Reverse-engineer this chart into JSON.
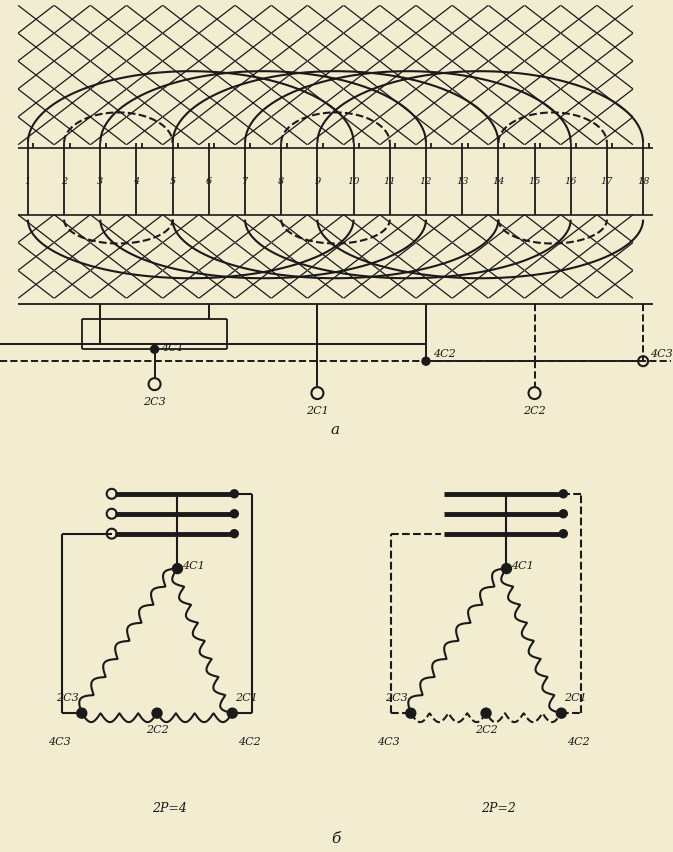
{
  "bg_color": "#f2ecd0",
  "line_color": "#1a1a1a",
  "n_slots": 18,
  "slot_numbers": [
    "1",
    "2",
    "3",
    "4",
    "5",
    "6",
    "7",
    "8",
    "9",
    "10",
    "11",
    "12",
    "13",
    "14",
    "15",
    "16",
    "17",
    "18"
  ],
  "label_a": "а",
  "label_b": "б",
  "label_2p4": "2Р=4",
  "label_2p2": "2Р=2",
  "labels_part_a": {
    "4C1": "4С1",
    "4C2": "4С2",
    "4C3": "4С3",
    "2C1": "2С1",
    "2C2": "2С2",
    "2C3": "2С3"
  }
}
